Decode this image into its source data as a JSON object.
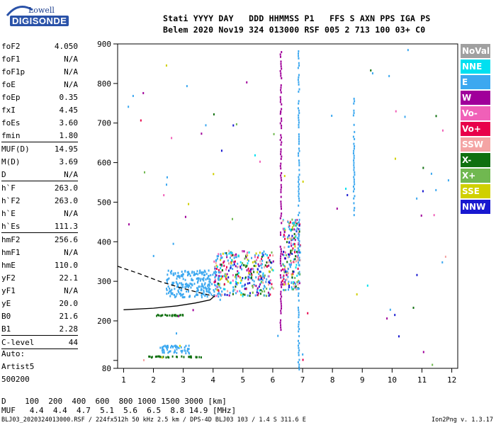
{
  "logo": {
    "top": "Lowell",
    "bottom": "DIGISONDE"
  },
  "header": {
    "line1": "Stati YYYY DAY   DDD HHMMSS P1   FFS S AXN PPS IGA PS",
    "line2": "Belem 2020 Nov19 324 013000 RSF 005 2 713 100 03+ C0"
  },
  "params": [
    {
      "name": "foF2",
      "value": "4.050"
    },
    {
      "name": "foF1",
      "value": "N/A"
    },
    {
      "name": "foF1p",
      "value": "N/A"
    },
    {
      "name": "foE",
      "value": "N/A"
    },
    {
      "name": "foEp",
      "value": "0.35"
    },
    {
      "name": "fxI",
      "value": "4.45"
    },
    {
      "name": "foEs",
      "value": "3.60"
    },
    {
      "name": "fmin",
      "value": "1.80",
      "sep": true
    },
    {
      "name": "MUF(D)",
      "value": "14.95"
    },
    {
      "name": "M(D)",
      "value": "3.69"
    },
    {
      "name": "D",
      "value": "N/A",
      "sep": true
    },
    {
      "name": "h`F",
      "value": "263.0"
    },
    {
      "name": "h`F2",
      "value": "263.0"
    },
    {
      "name": "h`E",
      "value": "N/A"
    },
    {
      "name": "h`Es",
      "value": "111.3",
      "sep": true
    },
    {
      "name": "hmF2",
      "value": "256.6"
    },
    {
      "name": "hmF1",
      "value": "N/A"
    },
    {
      "name": "hmE",
      "value": "110.0"
    },
    {
      "name": "yF2",
      "value": "22.1"
    },
    {
      "name": "yF1",
      "value": "N/A"
    },
    {
      "name": "yE",
      "value": "20.0"
    },
    {
      "name": "B0",
      "value": "21.6"
    },
    {
      "name": "B1",
      "value": "2.28",
      "sep": true
    },
    {
      "name": "C-level",
      "value": "44",
      "sep": true
    }
  ],
  "notes": [
    "Auto:",
    "Artist5",
    "500200"
  ],
  "footer": {
    "line1": "D    100  200  400  600  800 1000 1500 3000 [km]",
    "line2": "MUF   4.4  4.4  4.7  5.1  5.6  6.5  8.8 14.9 [MHz]",
    "line3": "BLJ03_2020324013000.RSF / 224fx512h 50 kHz 2.5 km / DPS-4D BLJ03 103 / 1.4 S 311.6 E",
    "version": "Ion2Png v. 1.3.17"
  },
  "legend": [
    {
      "label": "NoVal",
      "color": "#a0a0a0"
    },
    {
      "label": "NNE",
      "color": "#00e0f0"
    },
    {
      "label": "E",
      "color": "#3ca8f0"
    },
    {
      "label": "W",
      "color": "#a0009a"
    },
    {
      "label": "Vo-",
      "color": "#f060b8"
    },
    {
      "label": "Vo+",
      "color": "#e8004a"
    },
    {
      "label": "SSW",
      "color": "#f4a4a4"
    },
    {
      "label": "X-",
      "color": "#107010"
    },
    {
      "label": "X+",
      "color": "#70b850"
    },
    {
      "label": "SSE",
      "color": "#d0d000"
    },
    {
      "label": "NNW",
      "color": "#1818d0"
    }
  ],
  "chart_data": {
    "type": "scatter",
    "xlabel": "",
    "ylabel": "",
    "xlim": [
      0.8,
      12.2
    ],
    "ylim": [
      80,
      900
    ],
    "x_ticks": [
      1,
      2,
      3,
      4,
      5,
      6,
      7,
      8,
      9,
      10,
      11,
      12
    ],
    "y_ticks": [
      80,
      100,
      200,
      300,
      400,
      500,
      600,
      700,
      800,
      900
    ],
    "y_tick_labels": [
      "80",
      "",
      "200",
      "300",
      "400",
      "500",
      "600",
      "700",
      "800",
      "900"
    ],
    "ionogram_traces": [
      {
        "name": "O-trace F2",
        "region": {
          "f": [
            2.5,
            4.1
          ],
          "h": [
            262,
            310
          ]
        }
      },
      {
        "name": "Es layer",
        "region": {
          "f": [
            1.8,
            3.6
          ],
          "h": [
            111,
            112
          ]
        }
      }
    ],
    "echo_clusters": [
      {
        "f_min": 2.4,
        "f_max": 4.2,
        "h_min": 262,
        "h_max": 330,
        "color": "E"
      },
      {
        "f_min": 4.0,
        "f_max": 6.0,
        "h_min": 265,
        "h_max": 380,
        "color": "mixed"
      },
      {
        "f_min": 6.3,
        "f_max": 6.9,
        "h_min": 280,
        "h_max": 460,
        "color": "mixed"
      },
      {
        "f_min": 1.8,
        "f_max": 3.6,
        "h_min": 110,
        "h_max": 113,
        "color": "X-"
      },
      {
        "f_min": 2.0,
        "f_max": 3.0,
        "h_min": 215,
        "h_max": 218,
        "color": "X-"
      },
      {
        "f_min": 2.2,
        "f_max": 3.2,
        "h_min": 120,
        "h_max": 140,
        "color": "E"
      }
    ],
    "vertical_streaks": [
      {
        "f": 6.25,
        "h_min": 180,
        "h_max": 890,
        "color": "W"
      },
      {
        "f": 6.85,
        "h_min": 80,
        "h_max": 890,
        "color": "E"
      },
      {
        "f": 8.7,
        "h_min": 470,
        "h_max": 780,
        "color": "E"
      }
    ],
    "profile_curve": {
      "x": [
        1.0,
        2.0,
        2.8,
        3.4,
        3.9,
        4.05
      ],
      "h": [
        228,
        232,
        238,
        245,
        253,
        263
      ]
    },
    "extrapolated_curve": {
      "x": [
        0.8,
        1.5,
        2.2,
        2.9,
        3.5,
        4.0
      ],
      "h": [
        338,
        320,
        300,
        284,
        272,
        263
      ]
    }
  }
}
